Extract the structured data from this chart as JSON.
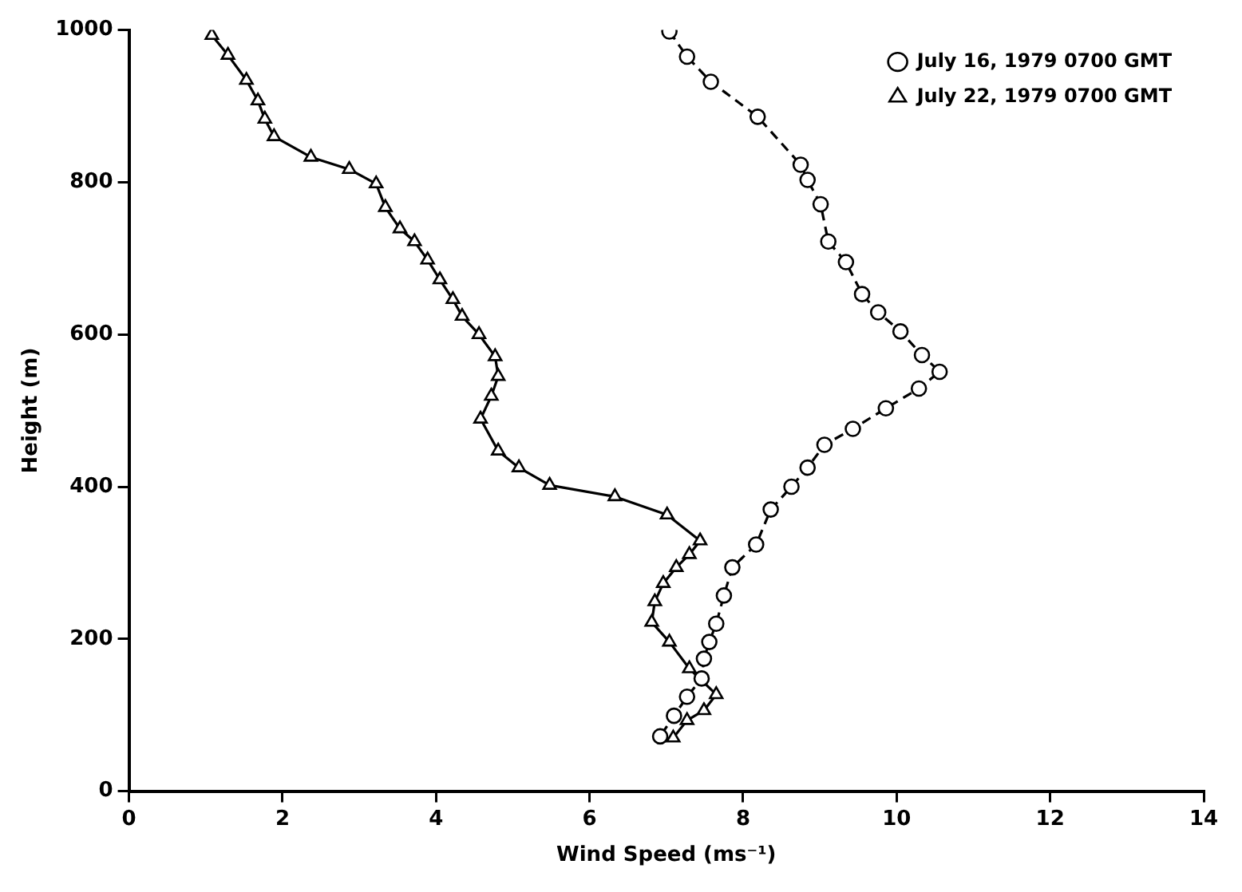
{
  "chart_data": {
    "type": "line",
    "xlabel": "Wind Speed (ms⁻¹)",
    "ylabel": "Height (m)",
    "xlim": [
      0,
      14
    ],
    "xticks": [
      0,
      2,
      4,
      6,
      8,
      10,
      12,
      14
    ],
    "ylim": [
      0,
      1000
    ],
    "yticks": [
      0,
      200,
      400,
      600,
      800,
      1000
    ],
    "grid": false,
    "legend": "top right",
    "series": [
      {
        "name": "July 16, 1979 0700 GMT",
        "color": "#000000",
        "marker": "circle",
        "line_style": "dashed",
        "x": [
          7.04,
          7.27,
          7.58,
          8.19,
          8.75,
          8.84,
          9.01,
          9.11,
          9.34,
          9.55,
          9.76,
          10.05,
          10.33,
          10.56,
          10.29,
          9.86,
          9.43,
          9.06,
          8.84,
          8.63,
          8.36,
          8.17,
          7.86,
          7.75,
          7.65,
          7.56,
          7.49,
          7.46,
          7.27,
          7.1,
          6.92
        ],
        "values": [
          998,
          965,
          932,
          886,
          823,
          803,
          771,
          722,
          695,
          653,
          629,
          604,
          573,
          551,
          529,
          503,
          476,
          455,
          425,
          400,
          370,
          324,
          294,
          257,
          220,
          196,
          174,
          148,
          124,
          99,
          72
        ]
      },
      {
        "name": "July 22, 1979 0700 GMT",
        "color": "#000000",
        "marker": "triangle",
        "line_style": "solid",
        "x": [
          1.08,
          1.29,
          1.53,
          1.68,
          1.77,
          1.89,
          2.37,
          2.87,
          3.22,
          3.34,
          3.53,
          3.72,
          3.89,
          4.05,
          4.22,
          4.34,
          4.56,
          4.77,
          4.81,
          4.72,
          4.58,
          4.81,
          5.08,
          5.48,
          6.33,
          7.01,
          7.44,
          7.3,
          7.13,
          6.96,
          6.85,
          6.81,
          7.04,
          7.3,
          7.65,
          7.49,
          7.27,
          7.09
        ],
        "values": [
          993,
          967,
          934,
          907,
          883,
          860,
          833,
          817,
          798,
          767,
          739,
          722,
          698,
          672,
          646,
          624,
          600,
          571,
          545,
          519,
          489,
          447,
          425,
          402,
          387,
          363,
          329,
          311,
          294,
          273,
          249,
          222,
          196,
          161,
          127,
          106,
          93,
          70
        ]
      }
    ]
  }
}
